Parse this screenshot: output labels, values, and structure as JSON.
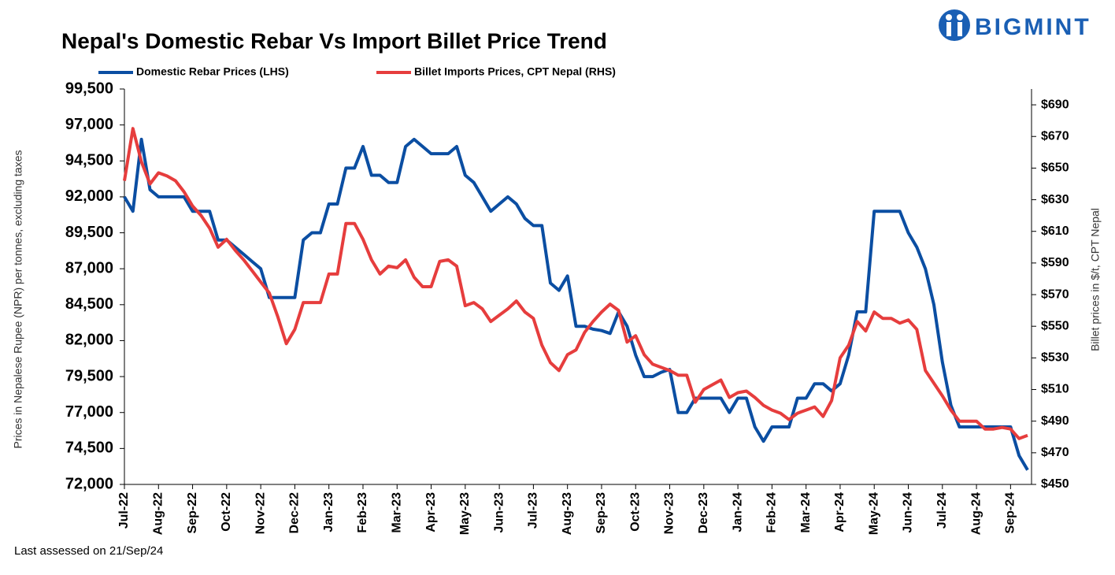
{
  "chart_data": {
    "type": "line",
    "title": "Nepal's Domestic Rebar Vs Import Billet Price Trend",
    "logo_text": "BIGMINT",
    "y_label": "Prices in Nepalese Rupee (NPR) per tonnes, excluding taxes",
    "y2_label": "Billet prices in $/t, CPT Nepal",
    "note": "Last assessed on 21/Sep/24",
    "legend": "top",
    "categories": [
      "Jul-22",
      null,
      null,
      null,
      "Aug-22",
      null,
      null,
      null,
      "Sep-22",
      null,
      null,
      null,
      "Oct-22",
      null,
      null,
      null,
      "Nov-22",
      null,
      null,
      null,
      "Dec-22",
      null,
      null,
      null,
      "Jan-23",
      null,
      null,
      null,
      "Feb-23",
      null,
      null,
      null,
      "Mar-23",
      null,
      null,
      null,
      "Apr-23",
      null,
      null,
      null,
      "May-23",
      null,
      null,
      null,
      "Jun-23",
      null,
      null,
      null,
      "Jul-23",
      null,
      null,
      null,
      "Aug-23",
      null,
      null,
      null,
      "Sep-23",
      null,
      null,
      null,
      "Oct-23",
      null,
      null,
      null,
      "Nov-23",
      null,
      null,
      null,
      "Dec-23",
      null,
      null,
      null,
      "Jan-24",
      null,
      null,
      null,
      "Feb-24",
      null,
      null,
      null,
      "Mar-24",
      null,
      null,
      null,
      "Apr-24",
      null,
      null,
      null,
      "May-24",
      null,
      null,
      null,
      "Jun-24",
      null,
      null,
      null,
      "Jul-24",
      null,
      null,
      null,
      "Aug-24",
      null,
      null,
      null,
      "Sep-24",
      null,
      null
    ],
    "series": [
      {
        "name": "Domestic Rebar Prices (LHS)",
        "color": "#0b4ea2",
        "axis": "y",
        "values": [
          92000,
          91000,
          96000,
          92500,
          92000,
          92000,
          92000,
          92000,
          91000,
          91000,
          91000,
          89000,
          89000,
          88500,
          88000,
          87500,
          87000,
          85000,
          85000,
          85000,
          85000,
          89000,
          89500,
          89500,
          91500,
          91500,
          94000,
          94000,
          95500,
          93500,
          93500,
          93000,
          93000,
          95500,
          96000,
          95500,
          95000,
          95000,
          95000,
          95500,
          93500,
          93000,
          92000,
          91000,
          91500,
          92000,
          91500,
          90500,
          90000,
          90000,
          86000,
          85500,
          86500,
          83000,
          83000,
          82800,
          82700,
          82500,
          84000,
          83000,
          81000,
          79500,
          79500,
          79800,
          80000,
          77000,
          77000,
          78000,
          78000,
          78000,
          78000,
          77000,
          78000,
          78000,
          76000,
          75000,
          76000,
          76000,
          76000,
          78000,
          78000,
          79000,
          79000,
          78500,
          79000,
          81000,
          84000,
          84000,
          91000,
          91000,
          91000,
          91000,
          89500,
          88500,
          87000,
          84500,
          80500,
          77500,
          76000,
          76000,
          76000,
          76000,
          76000,
          76000,
          76000,
          74000,
          73000
        ]
      },
      {
        "name": "Billet Imports Prices, CPT Nepal (RHS)",
        "color": "#e63d3d",
        "axis": "y2",
        "values": [
          642,
          675,
          654,
          640,
          647,
          645,
          642,
          635,
          626,
          620,
          612,
          600,
          605,
          598,
          592,
          585,
          578,
          571,
          556,
          539,
          548,
          565,
          565,
          565,
          583,
          583,
          615,
          615,
          605,
          592,
          583,
          588,
          587,
          592,
          581,
          575,
          575,
          591,
          592,
          588,
          563,
          565,
          561,
          553,
          557,
          561,
          566,
          559,
          555,
          538,
          527,
          522,
          532,
          535,
          546,
          553,
          559,
          564,
          560,
          540,
          544,
          532,
          526,
          524,
          522,
          519,
          519,
          502,
          510,
          513,
          516,
          505,
          508,
          509,
          505,
          500,
          497,
          495,
          491,
          495,
          497,
          499,
          493,
          503,
          530,
          538,
          553,
          547,
          559,
          555,
          555,
          552,
          554,
          548,
          522,
          514,
          506,
          497,
          490,
          490,
          490,
          485,
          485,
          486,
          485,
          479,
          481
        ]
      }
    ],
    "ylim": [
      72000,
      99500
    ],
    "yticks": [
      {
        "value": 72000,
        "label": "72,000"
      },
      {
        "value": 74500,
        "label": "74,500"
      },
      {
        "value": 77000,
        "label": "77,000"
      },
      {
        "value": 79500,
        "label": "79,500"
      },
      {
        "value": 82000,
        "label": "82,000"
      },
      {
        "value": 84500,
        "label": "84,500"
      },
      {
        "value": 87000,
        "label": "87,000"
      },
      {
        "value": 89500,
        "label": "89,500"
      },
      {
        "value": 92000,
        "label": "92,000"
      },
      {
        "value": 94500,
        "label": "94,500"
      },
      {
        "value": 97000,
        "label": "97,000"
      },
      {
        "value": 99500,
        "label": "99,500"
      }
    ],
    "y2lim": [
      450,
      700
    ],
    "y2ticks": [
      {
        "value": 450,
        "label": "$450"
      },
      {
        "value": 470,
        "label": "$470"
      },
      {
        "value": 490,
        "label": "$490"
      },
      {
        "value": 510,
        "label": "$510"
      },
      {
        "value": 530,
        "label": "$530"
      },
      {
        "value": 550,
        "label": "$550"
      },
      {
        "value": 570,
        "label": "$570"
      },
      {
        "value": 590,
        "label": "$590"
      },
      {
        "value": 610,
        "label": "$610"
      },
      {
        "value": 630,
        "label": "$630"
      },
      {
        "value": 650,
        "label": "$650"
      },
      {
        "value": 670,
        "label": "$670"
      },
      {
        "value": 690,
        "label": "$690"
      }
    ],
    "grid": false
  }
}
